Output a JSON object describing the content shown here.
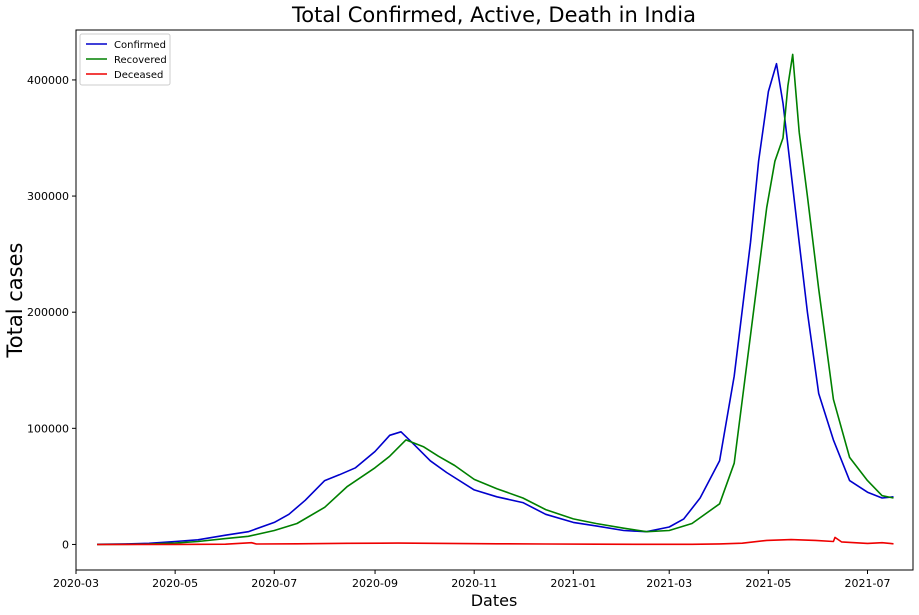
{
  "chart_data": {
    "type": "line",
    "title": "Total Confirmed, Active, Death in India",
    "xlabel": "Dates",
    "ylabel": "Total cases",
    "x_type": "date",
    "xlim": [
      "2020-03-01",
      "2021-07-29"
    ],
    "ylim": [
      -22000,
      443000
    ],
    "x_ticks": [
      "2020-03",
      "2020-05",
      "2020-07",
      "2020-09",
      "2020-11",
      "2021-01",
      "2021-03",
      "2021-05",
      "2021-07"
    ],
    "y_ticks": [
      0,
      100000,
      200000,
      300000,
      400000
    ],
    "grid": false,
    "legend_position": "top-left",
    "series": [
      {
        "name": "Confirmed",
        "color": "#0000cc",
        "points": [
          [
            "2020-03-14",
            100
          ],
          [
            "2020-04-01",
            500
          ],
          [
            "2020-04-15",
            1000
          ],
          [
            "2020-05-01",
            2500
          ],
          [
            "2020-05-15",
            4000
          ],
          [
            "2020-06-01",
            8000
          ],
          [
            "2020-06-15",
            11000
          ],
          [
            "2020-07-01",
            19000
          ],
          [
            "2020-07-10",
            26000
          ],
          [
            "2020-07-20",
            38000
          ],
          [
            "2020-08-01",
            55000
          ],
          [
            "2020-08-10",
            60000
          ],
          [
            "2020-08-20",
            66000
          ],
          [
            "2020-09-01",
            80000
          ],
          [
            "2020-09-10",
            94000
          ],
          [
            "2020-09-17",
            97000
          ],
          [
            "2020-09-25",
            86000
          ],
          [
            "2020-10-05",
            72000
          ],
          [
            "2020-10-15",
            62000
          ],
          [
            "2020-11-01",
            47000
          ],
          [
            "2020-11-15",
            41000
          ],
          [
            "2020-12-01",
            36000
          ],
          [
            "2020-12-15",
            26000
          ],
          [
            "2021-01-01",
            19000
          ],
          [
            "2021-01-15",
            16000
          ],
          [
            "2021-02-01",
            12000
          ],
          [
            "2021-02-15",
            11000
          ],
          [
            "2021-03-01",
            15000
          ],
          [
            "2021-03-10",
            22000
          ],
          [
            "2021-03-20",
            40000
          ],
          [
            "2021-04-01",
            72000
          ],
          [
            "2021-04-10",
            145000
          ],
          [
            "2021-04-20",
            260000
          ],
          [
            "2021-04-25",
            330000
          ],
          [
            "2021-05-01",
            390000
          ],
          [
            "2021-05-06",
            414000
          ],
          [
            "2021-05-10",
            380000
          ],
          [
            "2021-05-15",
            320000
          ],
          [
            "2021-05-20",
            260000
          ],
          [
            "2021-05-25",
            200000
          ],
          [
            "2021-06-01",
            130000
          ],
          [
            "2021-06-10",
            90000
          ],
          [
            "2021-06-20",
            55000
          ],
          [
            "2021-07-01",
            45000
          ],
          [
            "2021-07-10",
            40000
          ],
          [
            "2021-07-17",
            41000
          ]
        ]
      },
      {
        "name": "Recovered",
        "color": "#008000",
        "points": [
          [
            "2020-03-14",
            0
          ],
          [
            "2020-04-01",
            100
          ],
          [
            "2020-04-15",
            300
          ],
          [
            "2020-05-01",
            1200
          ],
          [
            "2020-05-15",
            2500
          ],
          [
            "2020-06-01",
            5000
          ],
          [
            "2020-06-15",
            7000
          ],
          [
            "2020-07-01",
            12000
          ],
          [
            "2020-07-15",
            18000
          ],
          [
            "2020-08-01",
            32000
          ],
          [
            "2020-08-15",
            50000
          ],
          [
            "2020-09-01",
            66000
          ],
          [
            "2020-09-10",
            76000
          ],
          [
            "2020-09-20",
            90000
          ],
          [
            "2020-10-01",
            84000
          ],
          [
            "2020-10-10",
            76000
          ],
          [
            "2020-10-20",
            68000
          ],
          [
            "2020-11-01",
            56000
          ],
          [
            "2020-11-15",
            48000
          ],
          [
            "2020-12-01",
            40000
          ],
          [
            "2020-12-15",
            30000
          ],
          [
            "2021-01-01",
            22000
          ],
          [
            "2021-01-15",
            18000
          ],
          [
            "2021-02-01",
            14000
          ],
          [
            "2021-02-15",
            11000
          ],
          [
            "2021-03-01",
            12000
          ],
          [
            "2021-03-15",
            18000
          ],
          [
            "2021-04-01",
            35000
          ],
          [
            "2021-04-10",
            70000
          ],
          [
            "2021-04-20",
            180000
          ],
          [
            "2021-04-30",
            290000
          ],
          [
            "2021-05-05",
            330000
          ],
          [
            "2021-05-10",
            350000
          ],
          [
            "2021-05-13",
            395000
          ],
          [
            "2021-05-16",
            422000
          ],
          [
            "2021-05-20",
            355000
          ],
          [
            "2021-05-25",
            300000
          ],
          [
            "2021-06-01",
            220000
          ],
          [
            "2021-06-10",
            125000
          ],
          [
            "2021-06-20",
            75000
          ],
          [
            "2021-07-01",
            55000
          ],
          [
            "2021-07-10",
            42000
          ],
          [
            "2021-07-17",
            40000
          ]
        ]
      },
      {
        "name": "Deceased",
        "color": "#ee0000",
        "points": [
          [
            "2020-03-14",
            0
          ],
          [
            "2020-05-01",
            80
          ],
          [
            "2020-06-01",
            250
          ],
          [
            "2020-06-17",
            1500
          ],
          [
            "2020-06-20",
            400
          ],
          [
            "2020-07-15",
            600
          ],
          [
            "2020-08-15",
            1000
          ],
          [
            "2020-09-15",
            1150
          ],
          [
            "2020-10-15",
            900
          ],
          [
            "2020-11-15",
            550
          ],
          [
            "2020-12-15",
            350
          ],
          [
            "2021-01-15",
            180
          ],
          [
            "2021-02-15",
            100
          ],
          [
            "2021-03-15",
            150
          ],
          [
            "2021-04-01",
            450
          ],
          [
            "2021-04-15",
            1100
          ],
          [
            "2021-04-30",
            3500
          ],
          [
            "2021-05-15",
            4200
          ],
          [
            "2021-05-30",
            3500
          ],
          [
            "2021-06-10",
            2500
          ],
          [
            "2021-06-11",
            6100
          ],
          [
            "2021-06-15",
            2200
          ],
          [
            "2021-07-01",
            900
          ],
          [
            "2021-07-10",
            1500
          ],
          [
            "2021-07-17",
            600
          ]
        ]
      }
    ]
  }
}
